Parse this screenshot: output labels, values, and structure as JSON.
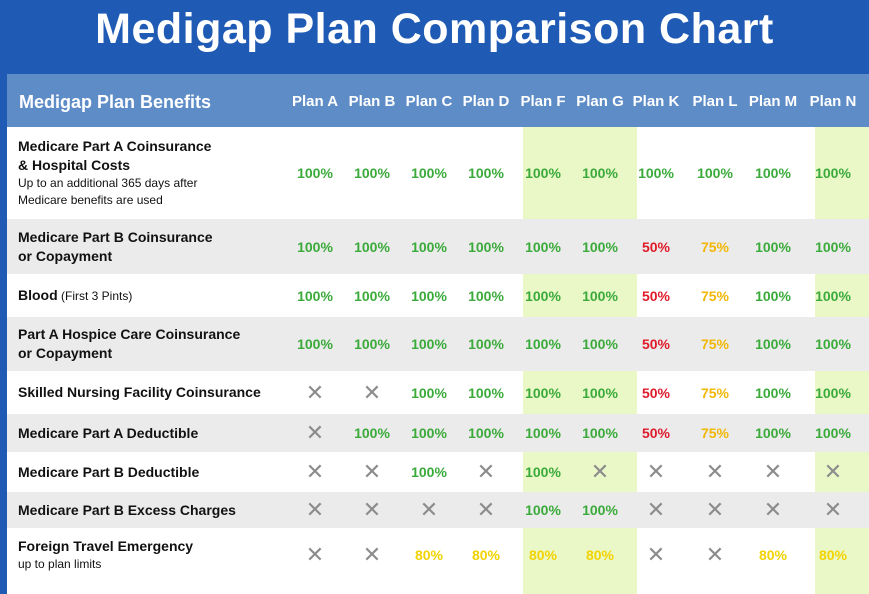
{
  "title": "Medigap Plan Comparison Chart",
  "header": {
    "benefits_label": "Medigap Plan Benefits",
    "plans": [
      "Plan A",
      "Plan B",
      "Plan C",
      "Plan D",
      "Plan F",
      "Plan G",
      "Plan K",
      "Plan L",
      "Plan M",
      "Plan N"
    ]
  },
  "highlighted_plans": [
    "Plan F",
    "Plan G",
    "Plan N"
  ],
  "colors": {
    "banner": "#1f5bb5",
    "header": "#5e8cc7",
    "highlight": "#eaf8c7",
    "full": "#3aaa3a",
    "half": "#e01b2b",
    "seventy_five": "#f2b705",
    "eighty": "#f2d300",
    "not_covered": "#8c8c8c"
  },
  "rows": [
    {
      "label": "Medicare Part A Coinsurance",
      "label_line2": "& Hospital Costs",
      "sub": "Up to an additional 365 days after",
      "sub_line2": "Medicare benefits are used",
      "values": [
        "100%",
        "100%",
        "100%",
        "100%",
        "100%",
        "100%",
        "100%",
        "100%",
        "100%",
        "100%"
      ]
    },
    {
      "label": "Medicare Part B Coinsurance",
      "label_line2": "or Copayment",
      "values": [
        "100%",
        "100%",
        "100%",
        "100%",
        "100%",
        "100%",
        "50%",
        "75%",
        "100%",
        "100%"
      ]
    },
    {
      "label": "Blood",
      "label_inline": "(First 3 Pints)",
      "values": [
        "100%",
        "100%",
        "100%",
        "100%",
        "100%",
        "100%",
        "50%",
        "75%",
        "100%",
        "100%"
      ]
    },
    {
      "label": "Part A Hospice Care Coinsurance",
      "label_line2": "or Copayment",
      "values": [
        "100%",
        "100%",
        "100%",
        "100%",
        "100%",
        "100%",
        "50%",
        "75%",
        "100%",
        "100%"
      ]
    },
    {
      "label": "Skilled Nursing Facility Coinsurance",
      "values": [
        "✕",
        "✕",
        "100%",
        "100%",
        "100%",
        "100%",
        "50%",
        "75%",
        "100%",
        "100%"
      ]
    },
    {
      "label": "Medicare Part A Deductible",
      "values": [
        "✕",
        "100%",
        "100%",
        "100%",
        "100%",
        "100%",
        "50%",
        "75%",
        "100%",
        "100%"
      ]
    },
    {
      "label": "Medicare Part B Deductible",
      "values": [
        "✕",
        "✕",
        "100%",
        "✕",
        "100%",
        "✕",
        "✕",
        "✕",
        "✕",
        "✕"
      ]
    },
    {
      "label": "Medicare Part B Excess Charges",
      "values": [
        "✕",
        "✕",
        "✕",
        "✕",
        "100%",
        "100%",
        "✕",
        "✕",
        "✕",
        "✕"
      ]
    },
    {
      "label": "Foreign Travel Emergency",
      "sub": "up to plan limits",
      "values": [
        "✕",
        "✕",
        "80%",
        "80%",
        "80%",
        "80%",
        "✕",
        "✕",
        "80%",
        "80%"
      ]
    }
  ]
}
